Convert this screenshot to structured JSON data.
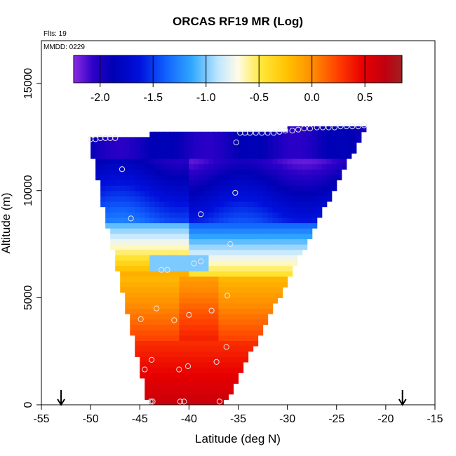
{
  "chart_data": {
    "type": "heatmap",
    "title": "ORCAS RF19 MR (Log)",
    "annotations": [
      "Flts: 19",
      "MMDD: 0229"
    ],
    "xlabel": "Latitude (deg N)",
    "ylabel": "Altitude (m)",
    "xlim": [
      -55,
      -15
    ],
    "ylim": [
      0,
      17000
    ],
    "x_ticks": [
      -55,
      -50,
      -45,
      -40,
      -35,
      -30,
      -25,
      -20,
      -15
    ],
    "y_ticks": [
      0,
      5000,
      10000,
      15000
    ],
    "colorbar": {
      "range": [
        -2.25,
        0.85
      ],
      "ticks": [
        -2.0,
        -1.5,
        -1.0,
        -0.5,
        0.0,
        0.5
      ],
      "tick_labels": [
        "-2.0",
        "-1.5",
        "-1.0",
        "-0.5",
        "0.0",
        "0.5"
      ]
    },
    "arrows_at_lat": [
      -53,
      -18.3
    ],
    "field_envelope": {
      "top": [
        [
          -50.0,
          12500
        ],
        [
          -44.0,
          12500
        ],
        [
          -44.0,
          12700
        ],
        [
          -30.0,
          12700
        ],
        [
          -30.0,
          13000
        ],
        [
          -22.0,
          13000
        ]
      ],
      "bottom": [
        [
          -44.0,
          0
        ],
        [
          -36.5,
          0
        ]
      ]
    },
    "profile_points": [
      [
        -50.0,
        12400
      ],
      [
        -49.5,
        12400
      ],
      [
        -49.0,
        12450
      ],
      [
        -48.5,
        12450
      ],
      [
        -48.0,
        12450
      ],
      [
        -47.5,
        12450
      ],
      [
        -35.2,
        12250
      ],
      [
        -34.8,
        12700
      ],
      [
        -34.3,
        12700
      ],
      [
        -33.8,
        12700
      ],
      [
        -33.2,
        12700
      ],
      [
        -32.6,
        12700
      ],
      [
        -32.0,
        12700
      ],
      [
        -31.4,
        12700
      ],
      [
        -30.8,
        12750
      ],
      [
        -30.2,
        12800
      ],
      [
        -29.5,
        12800
      ],
      [
        -28.9,
        12850
      ],
      [
        -28.3,
        12900
      ],
      [
        -27.7,
        12900
      ],
      [
        -27.0,
        12950
      ],
      [
        -26.4,
        12950
      ],
      [
        -25.8,
        12950
      ],
      [
        -25.2,
        12950
      ],
      [
        -24.6,
        13000
      ],
      [
        -24.0,
        13000
      ],
      [
        -23.4,
        13000
      ],
      [
        -22.8,
        13000
      ],
      [
        -22.2,
        13050
      ],
      [
        -46.8,
        11000
      ],
      [
        -35.3,
        9900
      ],
      [
        -45.9,
        8700
      ],
      [
        -38.8,
        8900
      ],
      [
        -35.8,
        7500
      ],
      [
        -42.8,
        6300
      ],
      [
        -42.2,
        6300
      ],
      [
        -39.5,
        6600
      ],
      [
        -38.8,
        6700
      ],
      [
        -36.1,
        5100
      ],
      [
        -43.3,
        4500
      ],
      [
        -37.7,
        4400
      ],
      [
        -40.0,
        4200
      ],
      [
        -44.9,
        4000
      ],
      [
        -41.5,
        3950
      ],
      [
        -36.2,
        2700
      ],
      [
        -43.8,
        2100
      ],
      [
        -37.2,
        2000
      ],
      [
        -40.1,
        1800
      ],
      [
        -41.0,
        1650
      ],
      [
        -44.5,
        1650
      ],
      [
        -43.7,
        150
      ],
      [
        -43.9,
        150
      ],
      [
        -40.9,
        150
      ],
      [
        -40.5,
        150
      ],
      [
        -36.9,
        150
      ]
    ]
  }
}
